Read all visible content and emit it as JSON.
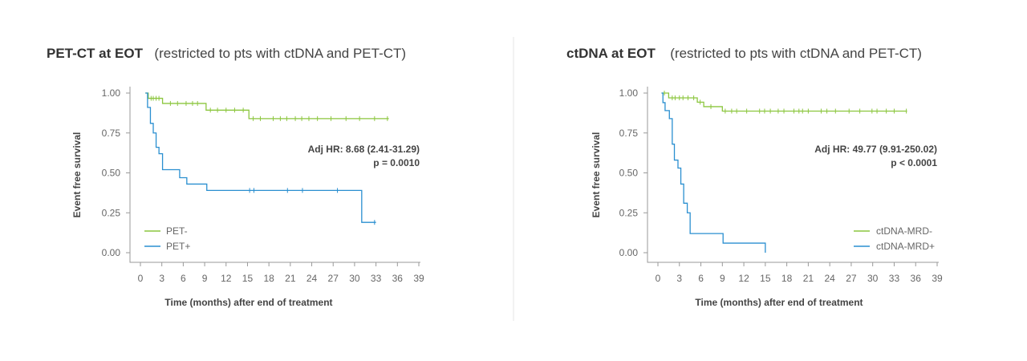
{
  "colors": {
    "green": "#8cc63f",
    "blue": "#2a8fd0",
    "axis": "#999999"
  },
  "chart_data": [
    {
      "type": "line",
      "title": "PET-CT at EOT",
      "subtitle": "(restricted to pts with ctDNA and PET-CT)",
      "xlabel": "Time (months) after end of treatment",
      "ylabel": "Event free survival",
      "xlim": [
        0,
        39
      ],
      "ylim": [
        0,
        1
      ],
      "xticks": [
        0,
        3,
        6,
        9,
        12,
        15,
        18,
        21,
        24,
        27,
        30,
        33,
        36,
        39
      ],
      "xtick_labels": [
        "0",
        "3",
        "6",
        "9",
        "12",
        "15",
        "18",
        "21",
        "24",
        "27",
        "30",
        "33",
        "36",
        "39"
      ],
      "yticks": [
        0,
        0.25,
        0.5,
        0.75,
        1.0
      ],
      "ytick_labels": [
        "0.00",
        "0.25",
        "0.50",
        "0.75",
        "1.00"
      ],
      "annotation": [
        "Adj HR: 8.68 (2.41-31.29)",
        "p = 0.0010"
      ],
      "legend": "bottom-left",
      "series": [
        {
          "name": "PET-",
          "color": "#8cc63f",
          "x": [
            0.7,
            1.1,
            3.1,
            9.2,
            15.2,
            34.8
          ],
          "y": [
            1.0,
            0.967,
            0.935,
            0.893,
            0.84,
            0.84
          ],
          "censor_x": [
            1.5,
            1.8,
            2.2,
            2.6,
            4.2,
            5.2,
            6.4,
            7.3,
            8.0,
            9.8,
            10.8,
            12.0,
            13.2,
            14.4,
            15.8,
            16.8,
            18.6,
            19.6,
            20.5,
            21.7,
            22.6,
            23.6,
            24.8,
            26.7,
            28.8,
            30.7,
            32.8,
            34.6
          ]
        },
        {
          "name": "PET+",
          "color": "#2a8fd0",
          "x": [
            0.7,
            1.0,
            1.4,
            1.8,
            2.2,
            2.6,
            3.1,
            5.5,
            6.5,
            9.3,
            31.0,
            33.0
          ],
          "y": [
            1.0,
            0.91,
            0.81,
            0.75,
            0.66,
            0.62,
            0.52,
            0.47,
            0.43,
            0.39,
            0.19,
            0.19
          ],
          "censor_x": [
            15.3,
            15.9,
            20.6,
            22.7,
            27.6,
            32.8
          ]
        }
      ]
    },
    {
      "type": "line",
      "title": "ctDNA at EOT",
      "subtitle": "(restricted to pts with ctDNA and PET-CT)",
      "xlabel": "Time (months) after end of treatment",
      "ylabel": "Event free survival",
      "xlim": [
        0,
        39
      ],
      "ylim": [
        0,
        1
      ],
      "xticks": [
        0,
        3,
        6,
        9,
        12,
        15,
        18,
        21,
        24,
        27,
        30,
        33,
        36,
        39
      ],
      "xtick_labels": [
        "0",
        "3",
        "6",
        "9",
        "12",
        "15",
        "18",
        "21",
        "24",
        "27",
        "30",
        "33",
        "36",
        "39"
      ],
      "yticks": [
        0,
        0.25,
        0.5,
        0.75,
        1.0
      ],
      "ytick_labels": [
        "0.00",
        "0.25",
        "0.50",
        "0.75",
        "1.00"
      ],
      "annotation": [
        "Adj HR: 49.77 (9.91-250.02)",
        "p < 0.0001"
      ],
      "legend": "bottom-right",
      "series": [
        {
          "name": "ctDNA-MRD-",
          "color": "#8cc63f",
          "x": [
            0.5,
            1.5,
            5.5,
            6.4,
            9.0,
            34.8
          ],
          "y": [
            1.0,
            0.97,
            0.943,
            0.915,
            0.887,
            0.887
          ],
          "censor_x": [
            0.9,
            2.0,
            2.4,
            3.0,
            3.5,
            4.2,
            5.0,
            5.9,
            7.4,
            9.4,
            10.3,
            11.0,
            12.4,
            14.2,
            14.9,
            15.7,
            16.8,
            17.6,
            19.0,
            19.7,
            20.2,
            21.0,
            22.8,
            23.6,
            24.8,
            26.7,
            28.2,
            29.9,
            30.6,
            31.9,
            33.0,
            34.7
          ]
        },
        {
          "name": "ctDNA-MRD+",
          "color": "#2a8fd0",
          "x": [
            0.5,
            0.7,
            1.0,
            1.6,
            2.0,
            2.3,
            2.8,
            3.2,
            3.6,
            4.1,
            4.5,
            9.1,
            15.0,
            15.0
          ],
          "y": [
            1.0,
            0.94,
            0.89,
            0.84,
            0.68,
            0.58,
            0.53,
            0.43,
            0.31,
            0.25,
            0.12,
            0.06,
            0.06,
            0.0
          ],
          "censor_x": []
        }
      ]
    }
  ]
}
